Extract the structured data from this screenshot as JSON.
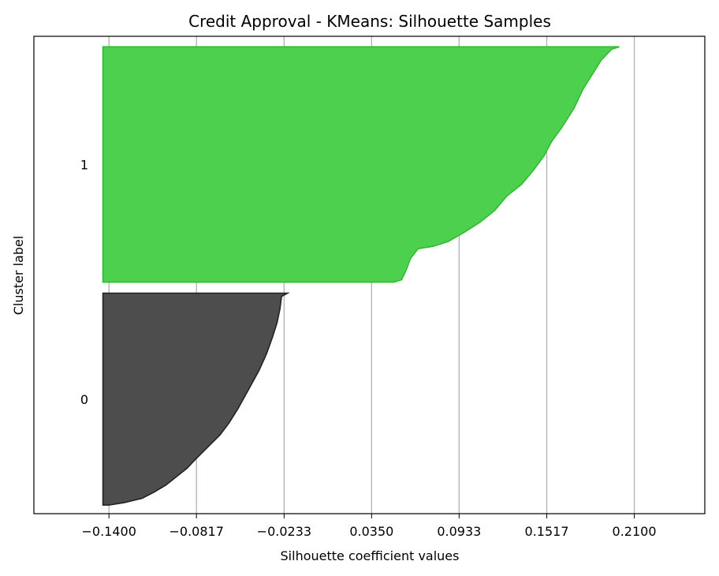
{
  "chart_data": {
    "type": "area",
    "title": "Credit Approval - KMeans: Silhouette Samples",
    "xlabel": "Silhouette coefficient values",
    "ylabel": "Cluster label",
    "xlim": [
      -0.19,
      0.257
    ],
    "ylim": [
      0,
      100
    ],
    "xticks": [
      -0.14,
      -0.0817,
      -0.0233,
      0.035,
      0.0933,
      0.1517,
      0.21
    ],
    "xtick_labels": [
      "−0.1400",
      "−0.0817",
      "−0.0233",
      "0.0350",
      "0.0933",
      "0.1517",
      "0.2100"
    ],
    "grid": "x",
    "series": [
      {
        "cluster": "0",
        "color": "#4d4d4d",
        "edge_color": "#222222",
        "y_start": 1.8,
        "y_end": 46.2,
        "points": [
          [
            -0.14,
            1.8
          ],
          [
            -0.13,
            2.3
          ],
          [
            -0.118,
            3.2
          ],
          [
            -0.11,
            4.5
          ],
          [
            -0.102,
            6.0
          ],
          [
            -0.096,
            7.5
          ],
          [
            -0.088,
            9.5
          ],
          [
            -0.082,
            11.5
          ],
          [
            -0.074,
            14.0
          ],
          [
            -0.066,
            16.5
          ],
          [
            -0.06,
            19.0
          ],
          [
            -0.054,
            22.0
          ],
          [
            -0.047,
            26.0
          ],
          [
            -0.04,
            30.0
          ],
          [
            -0.035,
            33.5
          ],
          [
            -0.031,
            37.0
          ],
          [
            -0.028,
            40.0
          ],
          [
            -0.026,
            43.0
          ],
          [
            -0.025,
            45.5
          ],
          [
            -0.021,
            46.2
          ]
        ]
      },
      {
        "cluster": "1",
        "color": "#4dd04d",
        "edge_color": "#2dbd2d",
        "y_start": 48.5,
        "y_end": 97.8,
        "points": [
          [
            0.05,
            48.5
          ],
          [
            0.055,
            49.0
          ],
          [
            0.058,
            51.0
          ],
          [
            0.061,
            53.5
          ],
          [
            0.066,
            55.5
          ],
          [
            0.076,
            56.0
          ],
          [
            0.086,
            57.0
          ],
          [
            0.097,
            59.0
          ],
          [
            0.107,
            61.0
          ],
          [
            0.117,
            63.5
          ],
          [
            0.125,
            66.5
          ],
          [
            0.135,
            69.0
          ],
          [
            0.143,
            72.0
          ],
          [
            0.15,
            75.0
          ],
          [
            0.155,
            78.0
          ],
          [
            0.162,
            81.0
          ],
          [
            0.17,
            85.0
          ],
          [
            0.176,
            89.0
          ],
          [
            0.182,
            92.0
          ],
          [
            0.188,
            95.0
          ],
          [
            0.195,
            97.3
          ],
          [
            0.2,
            97.8
          ]
        ]
      }
    ]
  }
}
